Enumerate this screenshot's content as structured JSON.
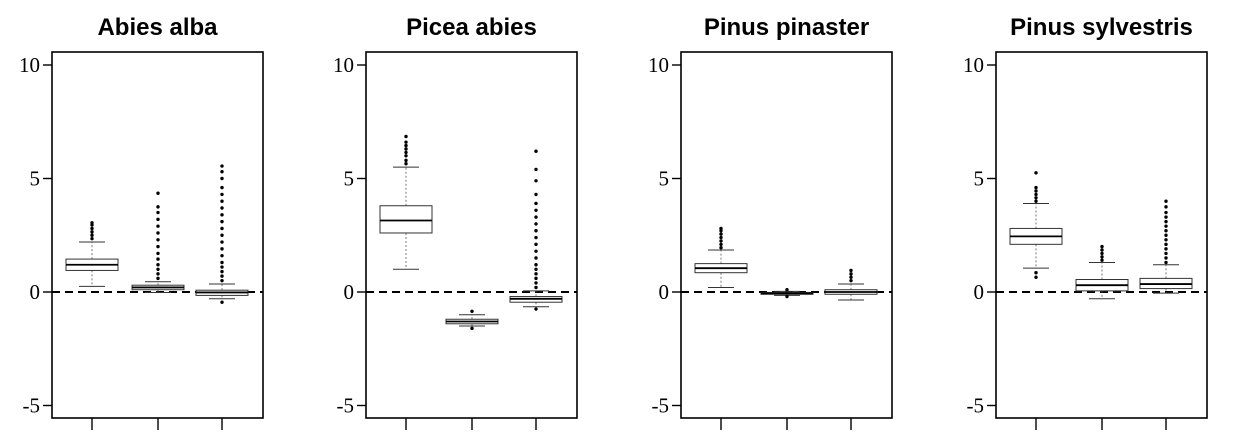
{
  "chart_data": [
    {
      "type": "box",
      "title": "Abies alba",
      "ylim": [
        -5.5,
        10.6
      ],
      "yticks": [
        -5,
        0,
        5,
        10
      ],
      "reference_line": 0,
      "boxes": [
        {
          "whisker_low": 0.25,
          "q1": 0.95,
          "median": 1.2,
          "q3": 1.45,
          "whisker_high": 2.2,
          "outliers": [
            2.35,
            2.5,
            2.65,
            2.8,
            2.95,
            3.05
          ]
        },
        {
          "whisker_low": -0.02,
          "q1": 0.1,
          "median": 0.2,
          "q3": 0.3,
          "whisker_high": 0.45,
          "outliers": [
            0.6,
            0.8,
            1.0,
            1.2,
            1.45,
            1.7,
            2.0,
            2.3,
            2.6,
            2.9,
            3.2,
            3.5,
            3.75,
            4.35
          ]
        },
        {
          "whisker_low": -0.3,
          "q1": -0.15,
          "median": -0.02,
          "q3": 0.08,
          "whisker_high": 0.35,
          "outliers": [
            -0.45,
            0.5,
            0.7,
            0.9,
            1.1,
            1.3,
            1.6,
            1.9,
            2.2,
            2.5,
            2.8,
            3.1,
            3.4,
            3.7,
            4.0,
            4.3,
            4.6,
            5.0,
            5.3,
            5.55
          ]
        }
      ]
    },
    {
      "type": "box",
      "title": "Picea abies",
      "ylim": [
        -5.5,
        10.6
      ],
      "yticks": [
        -5,
        0,
        5,
        10
      ],
      "reference_line": 0,
      "boxes": [
        {
          "whisker_low": 1.0,
          "q1": 2.6,
          "median": 3.15,
          "q3": 3.8,
          "whisker_high": 5.5,
          "outliers": [
            5.65,
            5.8,
            6.0,
            6.15,
            6.3,
            6.45,
            6.6,
            6.85
          ]
        },
        {
          "whisker_low": -1.5,
          "q1": -1.4,
          "median": -1.3,
          "q3": -1.2,
          "whisker_high": -1.0,
          "outliers": [
            -0.85,
            -1.6
          ]
        },
        {
          "whisker_low": -0.65,
          "q1": -0.45,
          "median": -0.3,
          "q3": -0.2,
          "whisker_high": 0.05,
          "outliers": [
            -0.75,
            0.2,
            0.4,
            0.6,
            0.8,
            1.0,
            1.2,
            1.5,
            1.8,
            2.1,
            2.4,
            2.7,
            3.0,
            3.3,
            3.6,
            3.9,
            4.3,
            4.9,
            5.4,
            6.2
          ]
        }
      ]
    },
    {
      "type": "box",
      "title": "Pinus pinaster",
      "ylim": [
        -5.5,
        10.6
      ],
      "yticks": [
        -5,
        0,
        5,
        10
      ],
      "reference_line": 0,
      "boxes": [
        {
          "whisker_low": 0.2,
          "q1": 0.85,
          "median": 1.05,
          "q3": 1.25,
          "whisker_high": 1.85,
          "outliers": [
            1.95,
            2.1,
            2.25,
            2.4,
            2.55,
            2.7,
            2.8
          ]
        },
        {
          "whisker_low": -0.15,
          "q1": -0.1,
          "median": -0.06,
          "q3": -0.02,
          "whisker_high": 0.03,
          "outliers": [
            0.1,
            -0.2
          ]
        },
        {
          "whisker_low": -0.35,
          "q1": -0.1,
          "median": 0.0,
          "q3": 0.1,
          "whisker_high": 0.35,
          "outliers": [
            0.5,
            0.65,
            0.8,
            0.95
          ]
        }
      ]
    },
    {
      "type": "box",
      "title": "Pinus sylvestris",
      "ylim": [
        -5.5,
        10.6
      ],
      "yticks": [
        -5,
        0,
        5,
        10
      ],
      "reference_line": 0,
      "boxes": [
        {
          "whisker_low": 1.05,
          "q1": 2.1,
          "median": 2.45,
          "q3": 2.8,
          "whisker_high": 3.9,
          "outliers": [
            0.65,
            0.85,
            4.0,
            4.15,
            4.3,
            4.45,
            4.6,
            5.25
          ]
        },
        {
          "whisker_low": -0.3,
          "q1": 0.05,
          "median": 0.3,
          "q3": 0.55,
          "whisker_high": 1.3,
          "outliers": [
            1.4,
            1.55,
            1.7,
            1.85,
            2.0
          ]
        },
        {
          "whisker_low": -0.05,
          "q1": 0.15,
          "median": 0.35,
          "q3": 0.6,
          "whisker_high": 1.2,
          "outliers": [
            1.3,
            1.5,
            1.7,
            1.9,
            2.1,
            2.3,
            2.5,
            2.7,
            2.9,
            3.1,
            3.3,
            3.5,
            3.75,
            4.0
          ]
        }
      ]
    }
  ]
}
